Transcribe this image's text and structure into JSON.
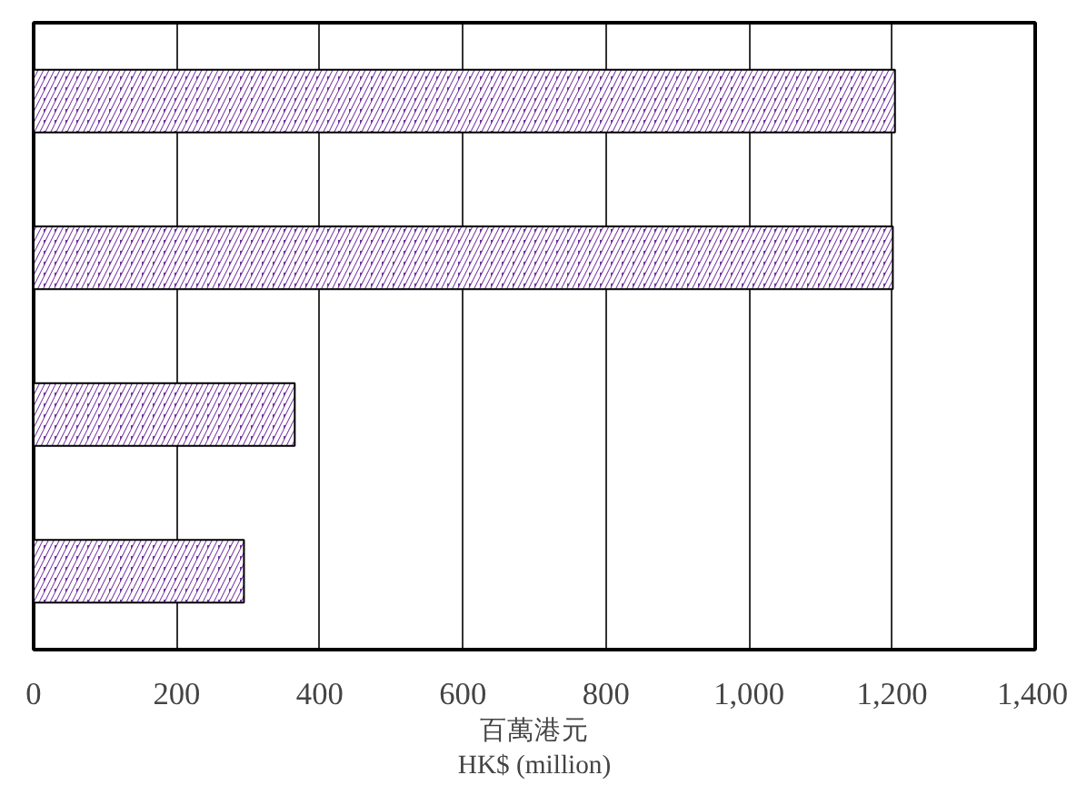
{
  "chart_data": {
    "type": "bar",
    "orientation": "horizontal",
    "xlabel": "百萬港元\nHK$ (million)",
    "categories": [
      null,
      null,
      null,
      null
    ],
    "values": [
      1204,
      1201,
      365,
      294
    ],
    "color": "#7030a0",
    "xlim": [
      0,
      1400
    ],
    "xticks": [
      0,
      200,
      400,
      600,
      800,
      {
        "value": 1000,
        "label": "1,000"
      },
      {
        "value": 1200,
        "label": "1,200"
      },
      {
        "value": 1400,
        "label": "1,400"
      }
    ],
    "grid": "x",
    "tick_labels": "x"
  }
}
